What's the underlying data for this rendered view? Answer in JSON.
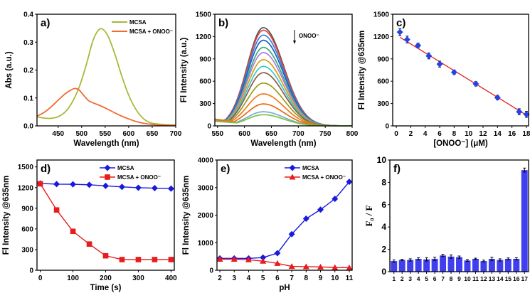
{
  "chart_data": [
    {
      "id": "a",
      "panel_label": "a)",
      "type": "line",
      "xlabel": "Wavelength (nm)",
      "ylabel": "Abs (a.u.)",
      "xlim": [
        405,
        700
      ],
      "ylim": [
        0,
        0.4
      ],
      "xticks": [
        450,
        500,
        550,
        600,
        650,
        700
      ],
      "yticks": [
        0.0,
        0.1,
        0.2,
        0.3,
        0.4
      ],
      "ytick_labels": [
        "0.0",
        "0.1",
        "0.2",
        "0.3",
        "0.4"
      ],
      "legend_position": "top-right",
      "series": [
        {
          "name": "MCSA",
          "color": "#a8b83a",
          "x": [
            405,
            420,
            435,
            450,
            465,
            480,
            495,
            510,
            525,
            540,
            555,
            570,
            585,
            600,
            615,
            630,
            645,
            660,
            680,
            700
          ],
          "y": [
            0.033,
            0.028,
            0.027,
            0.033,
            0.05,
            0.085,
            0.14,
            0.22,
            0.31,
            0.348,
            0.325,
            0.26,
            0.18,
            0.11,
            0.06,
            0.028,
            0.012,
            0.007,
            0.004,
            0.003
          ]
        },
        {
          "name": "MCSA + ONOO⁻",
          "color": "#f26b32",
          "x": [
            405,
            420,
            435,
            450,
            465,
            480,
            487,
            495,
            505,
            515,
            525,
            540,
            555,
            570,
            585,
            600,
            615,
            630,
            650,
            670,
            700
          ],
          "y": [
            0.035,
            0.048,
            0.068,
            0.092,
            0.115,
            0.131,
            0.134,
            0.128,
            0.108,
            0.09,
            0.082,
            0.072,
            0.06,
            0.047,
            0.035,
            0.025,
            0.016,
            0.01,
            0.005,
            0.003,
            0.002
          ]
        }
      ]
    },
    {
      "id": "b",
      "panel_label": "b)",
      "type": "line",
      "xlabel": "Wavelength (nm)",
      "ylabel": "Fl Intensity (a.u.)",
      "xlim": [
        545,
        800
      ],
      "ylim": [
        0,
        1500
      ],
      "xticks": [
        550,
        600,
        650,
        700,
        750,
        800
      ],
      "yticks": [
        0,
        300,
        600,
        900,
        1200,
        1500
      ],
      "annotation": "ONOO⁻",
      "peak_wavelength": 635,
      "series_peaks": [
        1320,
        1285,
        1220,
        1150,
        1055,
        985,
        890,
        800,
        715,
        575,
        430,
        295,
        190,
        150
      ],
      "series_colors": [
        "#555555",
        "#e8413b",
        "#3a7ed8",
        "#2060c0",
        "#3aa87a",
        "#b27ae0",
        "#d4a017",
        "#36c9c9",
        "#8b5a4a",
        "#9a9a1a",
        "#f07820",
        "#e86a10",
        "#7aa8d8",
        "#7ac43a"
      ]
    },
    {
      "id": "c",
      "panel_label": "c)",
      "type": "scatter",
      "xlabel": "[ONOO⁻] (μM)",
      "ylabel": "Fl Intensity @635nm",
      "xlim": [
        -0.5,
        18.3
      ],
      "ylim": [
        0,
        1500
      ],
      "xticks": [
        0,
        2,
        4,
        6,
        8,
        10,
        12,
        14,
        16,
        18
      ],
      "yticks": [
        0,
        300,
        600,
        900,
        1200,
        1500
      ],
      "marker_color": "#2343e8",
      "fit_color": "#e0201c",
      "x": [
        0.5,
        1.5,
        3,
        4.5,
        6,
        8,
        11,
        14,
        17,
        18
      ],
      "y": [
        1260,
        1160,
        1080,
        940,
        830,
        720,
        565,
        380,
        190,
        155
      ],
      "yerr": [
        45,
        45,
        30,
        40,
        40,
        30,
        30,
        30,
        40,
        40
      ],
      "fit": {
        "x": [
          0.5,
          18
        ],
        "y": [
          1190,
          145
        ]
      }
    },
    {
      "id": "d",
      "panel_label": "d)",
      "type": "line",
      "xlabel": "Time (s)",
      "ylabel": "Fl Intensity @635nm",
      "xlim": [
        -10,
        410
      ],
      "ylim": [
        0,
        1600
      ],
      "xticks": [
        0,
        100,
        200,
        300,
        400
      ],
      "yticks": [
        0,
        300,
        600,
        900,
        1200,
        1500
      ],
      "legend_position": "top-right",
      "series": [
        {
          "name": "MCSA",
          "color": "#1a1adc",
          "marker": "diamond",
          "x": [
            0,
            50,
            100,
            150,
            200,
            250,
            300,
            350,
            400
          ],
          "y": [
            1260,
            1250,
            1248,
            1240,
            1225,
            1210,
            1198,
            1192,
            1185
          ]
        },
        {
          "name": "MCSA + ONOO⁻",
          "color": "#e81c1c",
          "marker": "square",
          "x": [
            0,
            50,
            100,
            150,
            200,
            250,
            300,
            350,
            400
          ],
          "y": [
            1255,
            875,
            565,
            380,
            210,
            155,
            155,
            155,
            155
          ]
        }
      ]
    },
    {
      "id": "e",
      "panel_label": "e)",
      "type": "line",
      "xlabel": "pH",
      "ylabel": "Fl Intensity @635nm",
      "xlim": [
        1.8,
        11.2
      ],
      "ylim": [
        0,
        4000
      ],
      "xticks": [
        2,
        3,
        4,
        5,
        6,
        7,
        8,
        9,
        10,
        11
      ],
      "yticks": [
        0,
        1000,
        2000,
        3000,
        4000
      ],
      "legend_position": "top-right",
      "series": [
        {
          "name": "MCSA",
          "color": "#1a1adc",
          "marker": "diamond",
          "x": [
            2,
            3,
            4,
            5,
            6,
            7,
            8,
            9,
            10,
            11
          ],
          "y": [
            430,
            430,
            430,
            460,
            620,
            1310,
            1870,
            2200,
            2590,
            3210
          ]
        },
        {
          "name": "MCSA + ONOO⁻",
          "color": "#e81c1c",
          "marker": "triangle",
          "x": [
            2,
            3,
            4,
            5,
            6,
            7,
            8,
            9,
            10,
            11
          ],
          "y": [
            400,
            400,
            380,
            330,
            250,
            140,
            130,
            120,
            100,
            95
          ]
        }
      ]
    },
    {
      "id": "f",
      "panel_label": "f)",
      "type": "bar",
      "xlabel": "",
      "ylabel": "F₀ / F",
      "ylim": [
        0,
        10
      ],
      "yticks": [
        0,
        2,
        4,
        6,
        8,
        10
      ],
      "bar_color": "#3f3ff0",
      "categories": [
        "1",
        "2",
        "3",
        "4",
        "5",
        "6",
        "7",
        "8",
        "9",
        "10",
        "11",
        "12",
        "13",
        "14",
        "15",
        "16",
        "17"
      ],
      "values": [
        0.95,
        1.05,
        1.05,
        1.15,
        1.1,
        1.15,
        1.45,
        1.35,
        1.3,
        1.0,
        1.15,
        0.95,
        1.15,
        1.05,
        1.15,
        1.15,
        9.1
      ],
      "errors": [
        0.1,
        0.05,
        0.1,
        0.1,
        0.15,
        0.15,
        0.1,
        0.15,
        0.1,
        0.08,
        0.06,
        0.08,
        0.15,
        0.1,
        0.08,
        0.1,
        0.18
      ]
    }
  ]
}
